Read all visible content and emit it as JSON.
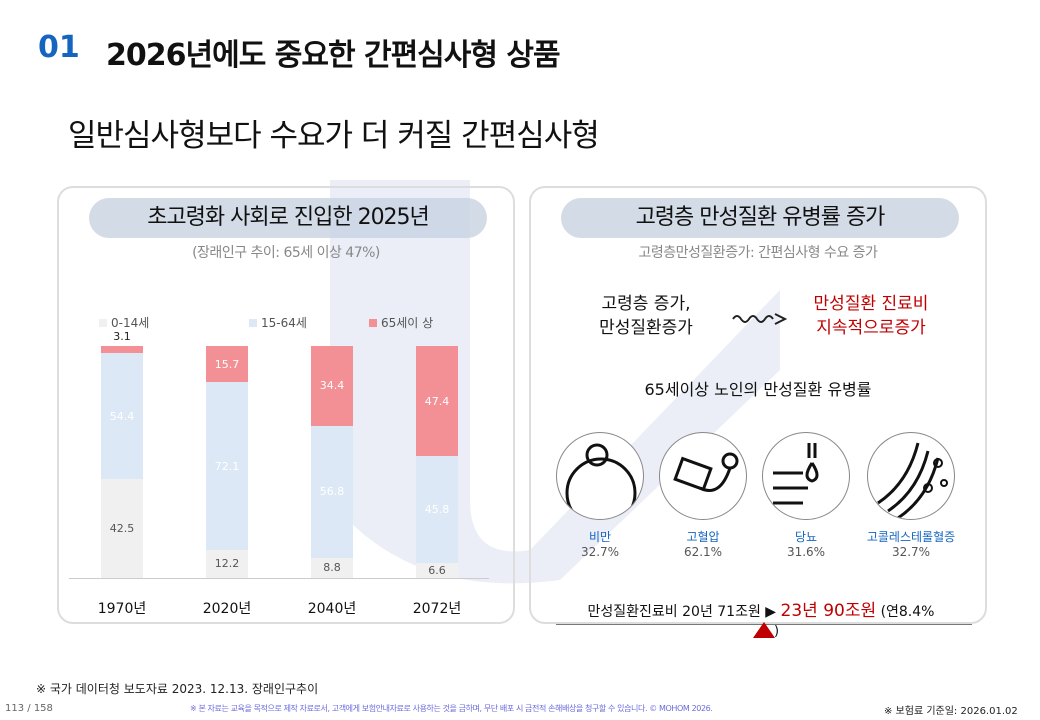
{
  "header": {
    "number": "01",
    "title": "2026년에도 중요한 간편심사형 상품",
    "subtitle": "일반심사형보다 수요가 더 커질 간편심사형"
  },
  "left": {
    "pill": "초고령화 사회로 진입한 2025년",
    "note": "(장래인구 추이: 65세 이상 47%)"
  },
  "chart_data": {
    "type": "bar",
    "stacked": true,
    "title": "초고령화 사회로 진입한 2025년",
    "xlabel": "",
    "ylabel": "",
    "ylim": [
      0,
      100
    ],
    "categories": [
      "1970년",
      "2020년",
      "2040년",
      "2072년"
    ],
    "series": [
      {
        "name": "0-14세",
        "color": "#f0f0f0",
        "values": [
          42.5,
          12.2,
          8.8,
          6.6
        ]
      },
      {
        "name": "15-64세",
        "color": "#dce8f5",
        "values": [
          54.4,
          72.1,
          56.8,
          45.8
        ]
      },
      {
        "name": "65세이 상",
        "color": "#f29096",
        "values": [
          3.1,
          15.7,
          34.4,
          47.4
        ]
      }
    ],
    "legend": "top"
  },
  "right": {
    "pill": "고령층 만성질환 유병률 증가",
    "note": "고령층만성질환증가: 간편심사형 수요 증가",
    "cause": [
      "고령층 증가,",
      "만성질환증가"
    ],
    "effect": [
      "만성질환 진료비",
      "지속적으로증가"
    ],
    "heading": "65세이상 노인의 만성질환 유병률",
    "diseases": [
      {
        "name": "비만",
        "value": "32.7%",
        "icon": "obesity-icon"
      },
      {
        "name": "고혈압",
        "value": "62.1%",
        "icon": "blood-pressure-icon"
      },
      {
        "name": "당뇨",
        "value": "31.6%",
        "icon": "diabetes-icon"
      },
      {
        "name": "고콜레스테롤혈증",
        "value": "32.7%",
        "icon": "cholesterol-icon"
      }
    ],
    "cost_a": "만성질환진료비 20년 71조원 ▶",
    "cost_b": "23년 90조원",
    "cost_c": "(연8.4%",
    "cost_d": ")",
    "accent": "#c00000"
  },
  "footer": {
    "source": "※ 국가 데이터청 보도자료 2023. 12.13. 장래인구추이",
    "page": "113 / 158",
    "disclaimer": "※ 본 자료는 교육을 목적으로 제작 자료로서, 고객에게 보험안내자료로 사용하는 것을 금하며, 무단 배포 시 금전적 손해배상을 청구할 수 있습니다. © MOHOM 2026.",
    "date": "※ 보험료 기준일: 2026.01.02"
  }
}
